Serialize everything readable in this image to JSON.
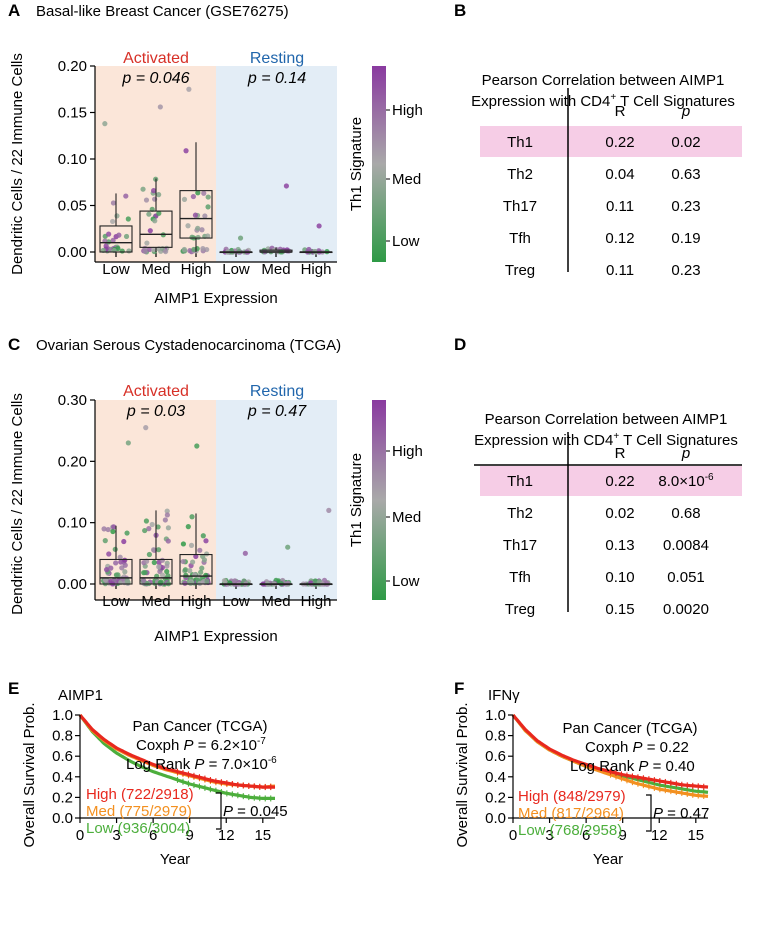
{
  "colors": {
    "activated": "#d73027",
    "resting": "#2166ac",
    "activated_bg": "#fbe6d9",
    "resting_bg": "#e3edf6",
    "highlight": "#f6cde6",
    "high_curve": "#e8281e",
    "med_curve": "#f39020",
    "low_curve": "#4cae3c",
    "th1_low": "#2e9a46",
    "th1_med": "#a9a9a9",
    "th1_high": "#8a3aa0"
  },
  "panels": {
    "A": {
      "label": "A",
      "title": "Basal-like Breast Cancer (GSE76275)",
      "activated_label": "Activated",
      "activated_p": "p = 0.046",
      "resting_label": "Resting",
      "resting_p": "p = 0.14",
      "ylabel": "Dendritic Cells / 22 Immune Cells",
      "xlabel": "AIMP1 Expression",
      "yticks": [
        "0.00",
        "0.05",
        "0.10",
        "0.15",
        "0.20"
      ],
      "xticks": [
        "Low",
        "Med",
        "High",
        "Low",
        "Med",
        "High"
      ],
      "colorbar_title": "Th1 Signature",
      "colorbar_labels": [
        "High",
        "Med",
        "Low"
      ]
    },
    "C": {
      "label": "C",
      "title": "Ovarian Serous Cystadenocarcinoma (TCGA)",
      "activated_label": "Activated",
      "activated_p": "p = 0.03",
      "resting_label": "Resting",
      "resting_p": "p = 0.47",
      "ylabel": "Dendritic Cells / 22 Immune Cells",
      "xlabel": "AIMP1 Expression",
      "yticks": [
        "0.00",
        "0.10",
        "0.20",
        "0.30"
      ],
      "xticks": [
        "Low",
        "Med",
        "High",
        "Low",
        "Med",
        "High"
      ],
      "colorbar_title": "Th1 Signature",
      "colorbar_labels": [
        "High",
        "Med",
        "Low"
      ]
    },
    "B": {
      "label": "B",
      "title_line1": "Pearson Correlation between AIMP1",
      "title_line2": "Expression with CD4",
      "title_sup": "+",
      "title_line2_end": " T Cell Signatures",
      "col_r": "R",
      "col_p": "p",
      "rows": [
        {
          "name": "Th1",
          "r": "0.22",
          "p": "0.02"
        },
        {
          "name": "Th2",
          "r": "0.04",
          "p": "0.63"
        },
        {
          "name": "Th17",
          "r": "0.11",
          "p": "0.23"
        },
        {
          "name": "Tfh",
          "r": "0.12",
          "p": "0.19"
        },
        {
          "name": "Treg",
          "r": "0.11",
          "p": "0.23"
        }
      ]
    },
    "D": {
      "label": "D",
      "title_line1": "Pearson Correlation between AIMP1",
      "title_line2": "Expression with CD4",
      "title_sup": "+",
      "title_line2_end": " T Cell Signatures",
      "col_r": "R",
      "col_p": "p",
      "rows": [
        {
          "name": "Th1",
          "r": "0.22",
          "p": "8.0×10",
          "p_sup": "-6"
        },
        {
          "name": "Th2",
          "r": "0.02",
          "p": "0.68"
        },
        {
          "name": "Th17",
          "r": "0.13",
          "p": "0.0084"
        },
        {
          "name": "Tfh",
          "r": "0.10",
          "p": "0.051"
        },
        {
          "name": "Treg",
          "r": "0.15",
          "p": "0.0020"
        }
      ]
    },
    "E": {
      "label": "E",
      "gene": "AIMP1",
      "stat_title": "Pan Cancer (TCGA)",
      "coxph_label": "Coxph ",
      "coxph_P": "P",
      "coxph_value": " =  6.2×10",
      "coxph_sup": "-7",
      "logrank_label": "Log Rank ",
      "logrank_P": "P",
      "logrank_value": " = 7.0×10",
      "logrank_sup": "-6",
      "legend": [
        "High (722/2918)",
        "Med (775/2979)",
        "Low (936/3004)"
      ],
      "pair_P": "P",
      "pair_value": " = 0.045",
      "ylabel": "Overall Survival Prob.",
      "xlabel": "Year",
      "yticks": [
        "0.0",
        "0.2",
        "0.4",
        "0.6",
        "0.8",
        "1.0"
      ],
      "xticks": [
        "0",
        "3",
        "6",
        "9",
        "12",
        "15"
      ]
    },
    "F": {
      "label": "F",
      "gene": "IFNγ",
      "stat_title": "Pan Cancer (TCGA)",
      "coxph_label": "Coxph ",
      "coxph_P": "P",
      "coxph_value": " = 0.22",
      "logrank_label": "Log Rank ",
      "logrank_P": "P",
      "logrank_value": " = 0.40",
      "legend": [
        "High (848/2979)",
        "Med (817/2964)",
        "Low (768/2958)"
      ],
      "pair_P": "P",
      "pair_value": " = 0.47",
      "ylabel": "Overall Survival Prob.",
      "xlabel": "Year",
      "yticks": [
        "0.0",
        "0.2",
        "0.4",
        "0.6",
        "0.8",
        "1.0"
      ],
      "xticks": [
        "0",
        "3",
        "6",
        "9",
        "12",
        "15"
      ]
    }
  },
  "chart_data": [
    {
      "id": "A",
      "type": "box",
      "title": "Basal-like Breast Cancer (GSE76275)",
      "xlabel": "AIMP1 Expression",
      "ylabel": "Dendritic Cells / 22 Immune Cells",
      "ylim": [
        0,
        0.2
      ],
      "groups": [
        {
          "state": "Activated",
          "level": "Low",
          "q1": 0.0,
          "median": 0.01,
          "q3": 0.028,
          "whisker_low": 0.0,
          "whisker_high": 0.063,
          "n": 30,
          "max_outlier": 0.138
        },
        {
          "state": "Activated",
          "level": "Med",
          "q1": 0.005,
          "median": 0.019,
          "q3": 0.044,
          "whisker_low": 0.0,
          "whisker_high": 0.079,
          "n": 32,
          "max_outlier": 0.156
        },
        {
          "state": "Activated",
          "level": "High",
          "q1": 0.015,
          "median": 0.036,
          "q3": 0.066,
          "whisker_low": 0.0,
          "whisker_high": 0.118,
          "n": 34,
          "max_outlier": 0.175
        },
        {
          "state": "Resting",
          "level": "Low",
          "q1": 0.0,
          "median": 0.0,
          "q3": 0.0,
          "whisker_low": 0.0,
          "whisker_high": 0.0,
          "n": 24,
          "max_outlier": 0.015
        },
        {
          "state": "Resting",
          "level": "Med",
          "q1": 0.0,
          "median": 0.0,
          "q3": 0.002,
          "whisker_low": 0.0,
          "whisker_high": 0.005,
          "n": 26,
          "max_outlier": 0.071
        },
        {
          "state": "Resting",
          "level": "High",
          "q1": 0.0,
          "median": 0.0,
          "q3": 0.0,
          "whisker_low": 0.0,
          "whisker_high": 0.0,
          "n": 14,
          "max_outlier": 0.028
        }
      ],
      "p_values": {
        "Activated": 0.046,
        "Resting": 0.14
      }
    },
    {
      "id": "C",
      "type": "box",
      "title": "Ovarian Serous Cystadenocarcinoma (TCGA)",
      "xlabel": "AIMP1 Expression",
      "ylabel": "Dendritic Cells / 22 Immune Cells",
      "ylim": [
        0,
        0.3
      ],
      "groups": [
        {
          "state": "Activated",
          "level": "Low",
          "q1": 0.0,
          "median": 0.01,
          "q3": 0.04,
          "whisker_low": 0.0,
          "whisker_high": 0.095,
          "n": 60,
          "max_outlier": 0.23
        },
        {
          "state": "Activated",
          "level": "Med",
          "q1": 0.0,
          "median": 0.01,
          "q3": 0.04,
          "whisker_low": 0.0,
          "whisker_high": 0.12,
          "n": 65,
          "max_outlier": 0.255
        },
        {
          "state": "Activated",
          "level": "High",
          "q1": 0.0,
          "median": 0.013,
          "q3": 0.048,
          "whisker_low": 0.0,
          "whisker_high": 0.115,
          "n": 62,
          "max_outlier": 0.225
        },
        {
          "state": "Resting",
          "level": "Low",
          "q1": 0.0,
          "median": 0.0,
          "q3": 0.0,
          "whisker_low": 0.0,
          "whisker_high": 0.0,
          "n": 40,
          "max_outlier": 0.05
        },
        {
          "state": "Resting",
          "level": "Med",
          "q1": 0.0,
          "median": 0.0,
          "q3": 0.0,
          "whisker_low": 0.0,
          "whisker_high": 0.0,
          "n": 42,
          "max_outlier": 0.06
        },
        {
          "state": "Resting",
          "level": "High",
          "q1": 0.0,
          "median": 0.0,
          "q3": 0.0,
          "whisker_low": 0.0,
          "whisker_high": 0.0,
          "n": 40,
          "max_outlier": 0.12
        }
      ],
      "p_values": {
        "Activated": 0.03,
        "Resting": 0.47
      }
    },
    {
      "id": "E",
      "type": "line",
      "title": "AIMP1 – Pan Cancer (TCGA)",
      "xlabel": "Year",
      "ylabel": "Overall Survival Prob.",
      "xlim": [
        0,
        16
      ],
      "ylim": [
        0,
        1
      ],
      "series": [
        {
          "name": "High",
          "x": [
            0,
            1,
            2,
            3,
            4,
            5,
            6,
            7,
            8,
            9,
            10,
            11,
            12,
            13,
            14,
            15,
            16
          ],
          "y": [
            1.0,
            0.86,
            0.76,
            0.68,
            0.62,
            0.57,
            0.52,
            0.48,
            0.45,
            0.42,
            0.39,
            0.36,
            0.34,
            0.32,
            0.31,
            0.3,
            0.3
          ]
        },
        {
          "name": "Med",
          "x": [
            0,
            1,
            2,
            3,
            4,
            5,
            6,
            7,
            8,
            9,
            10,
            11,
            12,
            13,
            14,
            15,
            16
          ],
          "y": [
            1.0,
            0.85,
            0.75,
            0.67,
            0.61,
            0.56,
            0.51,
            0.47,
            0.44,
            0.41,
            0.38,
            0.35,
            0.33,
            0.32,
            0.31,
            0.3,
            0.31
          ]
        },
        {
          "name": "Low",
          "x": [
            0,
            1,
            2,
            3,
            4,
            5,
            6,
            7,
            8,
            9,
            10,
            11,
            12,
            13,
            14,
            15,
            16
          ],
          "y": [
            1.0,
            0.84,
            0.72,
            0.63,
            0.56,
            0.5,
            0.45,
            0.41,
            0.37,
            0.33,
            0.3,
            0.27,
            0.24,
            0.22,
            0.2,
            0.19,
            0.19
          ]
        }
      ]
    },
    {
      "id": "F",
      "type": "line",
      "title": "IFNγ – Pan Cancer (TCGA)",
      "xlabel": "Year",
      "ylabel": "Overall Survival Prob.",
      "xlim": [
        0,
        16
      ],
      "ylim": [
        0,
        1
      ],
      "series": [
        {
          "name": "High",
          "x": [
            0,
            1,
            2,
            3,
            4,
            5,
            6,
            7,
            8,
            9,
            10,
            11,
            12,
            13,
            14,
            15,
            16
          ],
          "y": [
            1.0,
            0.86,
            0.75,
            0.67,
            0.61,
            0.56,
            0.52,
            0.48,
            0.45,
            0.42,
            0.4,
            0.38,
            0.36,
            0.34,
            0.32,
            0.31,
            0.3
          ]
        },
        {
          "name": "Med",
          "x": [
            0,
            1,
            2,
            3,
            4,
            5,
            6,
            7,
            8,
            9,
            10,
            11,
            12,
            13,
            14,
            15,
            16
          ],
          "y": [
            1.0,
            0.85,
            0.74,
            0.66,
            0.6,
            0.55,
            0.5,
            0.46,
            0.42,
            0.38,
            0.34,
            0.31,
            0.28,
            0.26,
            0.24,
            0.22,
            0.21
          ]
        },
        {
          "name": "Low",
          "x": [
            0,
            1,
            2,
            3,
            4,
            5,
            6,
            7,
            8,
            9,
            10,
            11,
            12,
            13,
            14,
            15,
            16
          ],
          "y": [
            1.0,
            0.85,
            0.74,
            0.66,
            0.6,
            0.55,
            0.5,
            0.47,
            0.44,
            0.41,
            0.38,
            0.35,
            0.32,
            0.3,
            0.28,
            0.26,
            0.25
          ]
        }
      ]
    }
  ]
}
